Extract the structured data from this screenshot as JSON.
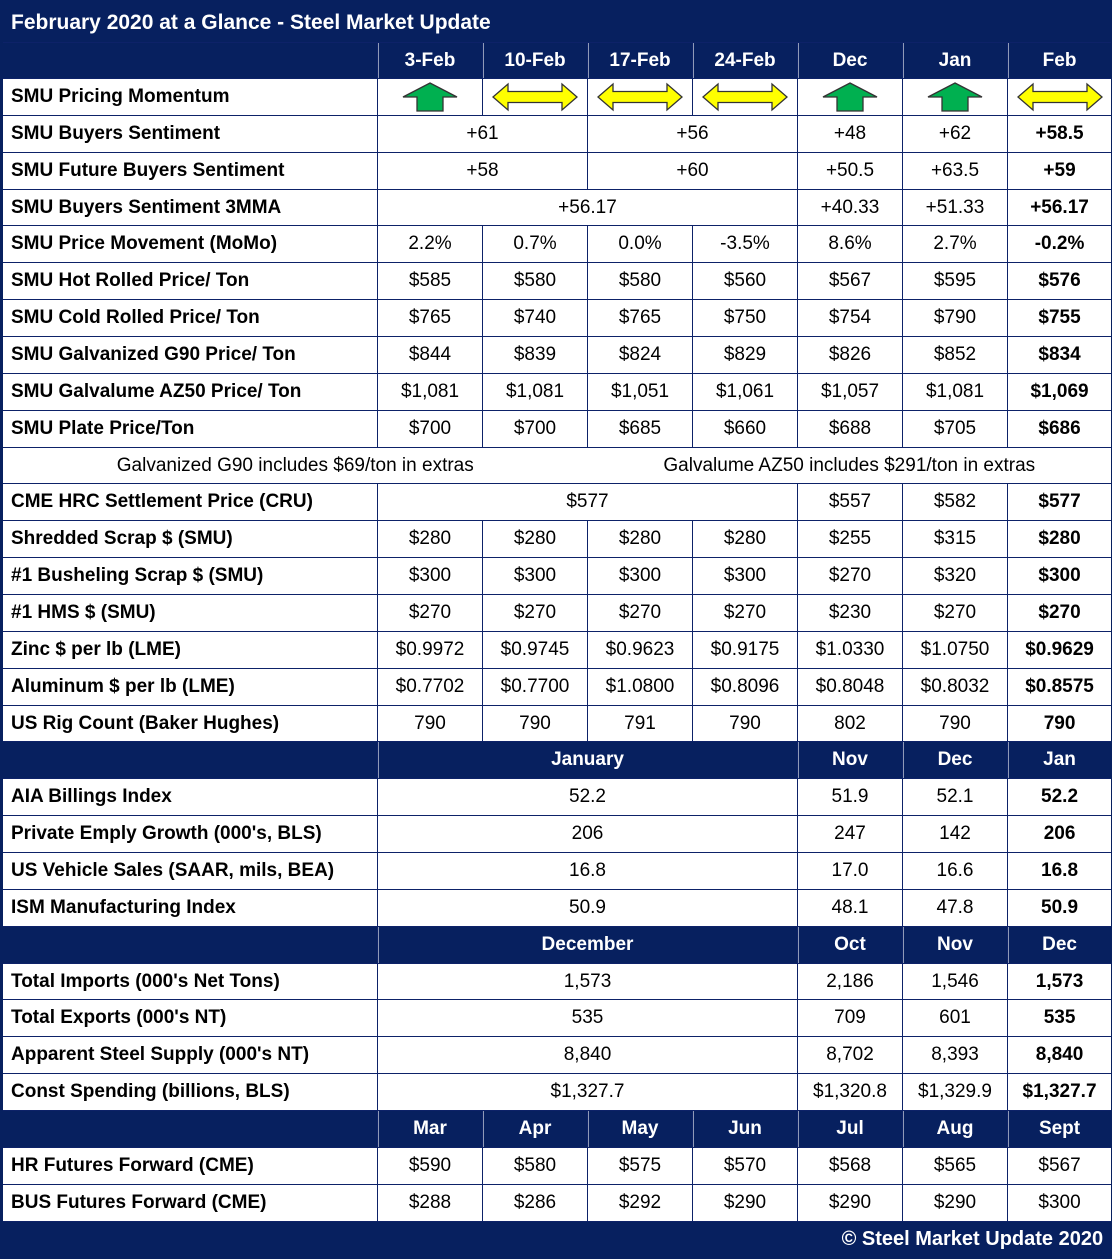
{
  "title": "February 2020 at a Glance - Steel Market Update",
  "footer": "© Steel Market Update 2020",
  "colors": {
    "navy": "#07205f",
    "green": "#00b050",
    "yellow": "#ffff00",
    "arrow_outline": "#333333"
  },
  "chart_data": {
    "type": "table",
    "title": "February 2020 at a Glance - Steel Market Update",
    "columns": [
      "3-Feb",
      "10-Feb",
      "17-Feb",
      "24-Feb",
      "Dec",
      "Jan",
      "Feb"
    ],
    "rows": [
      {
        "type": "arrows",
        "label": "SMU Pricing Momentum",
        "arrows": [
          "up",
          "leftright",
          "leftright",
          "leftright",
          "up",
          "up",
          "leftright"
        ]
      },
      {
        "type": "data",
        "label": "SMU Buyers Sentiment",
        "cells": [
          {
            "t": "+61",
            "span": 2
          },
          {
            "t": "+56",
            "span": 2
          },
          {
            "t": "+48"
          },
          {
            "t": "+62"
          },
          {
            "t": "+58.5",
            "b": 1
          }
        ]
      },
      {
        "type": "data",
        "label": "SMU Future Buyers Sentiment",
        "cells": [
          {
            "t": "+58",
            "span": 2
          },
          {
            "t": "+60",
            "span": 2
          },
          {
            "t": "+50.5"
          },
          {
            "t": "+63.5"
          },
          {
            "t": "+59",
            "b": 1
          }
        ]
      },
      {
        "type": "data",
        "label": "SMU Buyers Sentiment 3MMA",
        "cells": [
          {
            "t": "+56.17",
            "span": 4
          },
          {
            "t": "+40.33"
          },
          {
            "t": "+51.33"
          },
          {
            "t": "+56.17",
            "b": 1
          }
        ]
      },
      {
        "type": "data",
        "label": "SMU Price Movement (MoMo)",
        "cells": [
          {
            "t": "2.2%"
          },
          {
            "t": "0.7%"
          },
          {
            "t": "0.0%"
          },
          {
            "t": "-3.5%"
          },
          {
            "t": "8.6%"
          },
          {
            "t": "2.7%"
          },
          {
            "t": "-0.2%",
            "b": 1
          }
        ]
      },
      {
        "type": "data",
        "label": "SMU Hot Rolled Price/ Ton",
        "cells": [
          {
            "t": "$585"
          },
          {
            "t": "$580"
          },
          {
            "t": "$580"
          },
          {
            "t": "$560"
          },
          {
            "t": "$567"
          },
          {
            "t": "$595"
          },
          {
            "t": "$576",
            "b": 1
          }
        ]
      },
      {
        "type": "data",
        "label": "SMU Cold Rolled Price/ Ton",
        "cells": [
          {
            "t": "$765"
          },
          {
            "t": "$740"
          },
          {
            "t": "$765"
          },
          {
            "t": "$750"
          },
          {
            "t": "$754"
          },
          {
            "t": "$790"
          },
          {
            "t": "$755",
            "b": 1
          }
        ]
      },
      {
        "type": "data",
        "label": "SMU Galvanized G90 Price/ Ton",
        "cells": [
          {
            "t": "$844"
          },
          {
            "t": "$839"
          },
          {
            "t": "$824"
          },
          {
            "t": "$829"
          },
          {
            "t": "$826"
          },
          {
            "t": "$852"
          },
          {
            "t": "$834",
            "b": 1
          }
        ]
      },
      {
        "type": "data",
        "label": "SMU Galvalume AZ50 Price/ Ton",
        "cells": [
          {
            "t": "$1,081"
          },
          {
            "t": "$1,081"
          },
          {
            "t": "$1,051"
          },
          {
            "t": "$1,061"
          },
          {
            "t": "$1,057"
          },
          {
            "t": "$1,081"
          },
          {
            "t": "$1,069",
            "b": 1
          }
        ]
      },
      {
        "type": "data",
        "label": "SMU Plate Price/Ton",
        "cells": [
          {
            "t": "$700"
          },
          {
            "t": "$700"
          },
          {
            "t": "$685"
          },
          {
            "t": "$660"
          },
          {
            "t": "$688"
          },
          {
            "t": "$705"
          },
          {
            "t": "$686",
            "b": 1
          }
        ]
      },
      {
        "type": "note",
        "cells": [
          {
            "t": "Galvanized G90 includes $69/ton in extras",
            "span": 3
          },
          {
            "t": "Galvalume AZ50 includes $291/ton in extras",
            "span": 5
          }
        ]
      },
      {
        "type": "data",
        "label": "CME HRC Settlement Price (CRU)",
        "cells": [
          {
            "t": "$577",
            "span": 4
          },
          {
            "t": "$557"
          },
          {
            "t": "$582"
          },
          {
            "t": "$577",
            "b": 1
          }
        ]
      },
      {
        "type": "data",
        "label": "Shredded Scrap $ (SMU)",
        "cells": [
          {
            "t": "$280"
          },
          {
            "t": "$280"
          },
          {
            "t": "$280"
          },
          {
            "t": "$280"
          },
          {
            "t": "$255"
          },
          {
            "t": "$315"
          },
          {
            "t": "$280",
            "b": 1
          }
        ]
      },
      {
        "type": "data",
        "label": "#1 Busheling Scrap $ (SMU)",
        "cells": [
          {
            "t": "$300"
          },
          {
            "t": "$300"
          },
          {
            "t": "$300"
          },
          {
            "t": "$300"
          },
          {
            "t": "$270"
          },
          {
            "t": "$320"
          },
          {
            "t": "$300",
            "b": 1
          }
        ]
      },
      {
        "type": "data",
        "label": "#1 HMS $ (SMU)",
        "cells": [
          {
            "t": "$270"
          },
          {
            "t": "$270"
          },
          {
            "t": "$270"
          },
          {
            "t": "$270"
          },
          {
            "t": "$230"
          },
          {
            "t": "$270"
          },
          {
            "t": "$270",
            "b": 1
          }
        ]
      },
      {
        "type": "data",
        "label": "Zinc $ per lb (LME)",
        "cells": [
          {
            "t": "$0.9972"
          },
          {
            "t": "$0.9745"
          },
          {
            "t": "$0.9623"
          },
          {
            "t": "$0.9175"
          },
          {
            "t": "$1.0330"
          },
          {
            "t": "$1.0750"
          },
          {
            "t": "$0.9629",
            "b": 1
          }
        ]
      },
      {
        "type": "data",
        "label": "Aluminum $ per lb (LME)",
        "cells": [
          {
            "t": "$0.7702"
          },
          {
            "t": "$0.7700"
          },
          {
            "t": "$1.0800"
          },
          {
            "t": "$0.8096"
          },
          {
            "t": "$0.8048"
          },
          {
            "t": "$0.8032"
          },
          {
            "t": "$0.8575",
            "b": 1
          }
        ]
      },
      {
        "type": "data",
        "label": "US Rig Count (Baker Hughes)",
        "cells": [
          {
            "t": "790"
          },
          {
            "t": "790"
          },
          {
            "t": "791"
          },
          {
            "t": "790"
          },
          {
            "t": "802"
          },
          {
            "t": "790"
          },
          {
            "t": "790",
            "b": 1
          }
        ]
      },
      {
        "type": "section",
        "label": "",
        "cells": [
          {
            "t": "January",
            "span": 4
          },
          {
            "t": "Nov"
          },
          {
            "t": "Dec"
          },
          {
            "t": "Jan"
          }
        ]
      },
      {
        "type": "data",
        "label": "AIA Billings Index",
        "cells": [
          {
            "t": "52.2",
            "span": 4
          },
          {
            "t": "51.9"
          },
          {
            "t": "52.1"
          },
          {
            "t": "52.2",
            "b": 1
          }
        ]
      },
      {
        "type": "data",
        "label": "Private Emply Growth (000's, BLS)",
        "cells": [
          {
            "t": "206",
            "span": 4
          },
          {
            "t": "247"
          },
          {
            "t": "142"
          },
          {
            "t": "206",
            "b": 1
          }
        ]
      },
      {
        "type": "data",
        "label": "US Vehicle Sales (SAAR, mils, BEA)",
        "cells": [
          {
            "t": "16.8",
            "span": 4
          },
          {
            "t": "17.0"
          },
          {
            "t": "16.6"
          },
          {
            "t": "16.8",
            "b": 1
          }
        ]
      },
      {
        "type": "data",
        "label": "ISM Manufacturing Index",
        "cells": [
          {
            "t": "50.9",
            "span": 4
          },
          {
            "t": "48.1"
          },
          {
            "t": "47.8"
          },
          {
            "t": "50.9",
            "b": 1
          }
        ]
      },
      {
        "type": "section",
        "label": "",
        "cells": [
          {
            "t": "December",
            "span": 4
          },
          {
            "t": "Oct"
          },
          {
            "t": "Nov"
          },
          {
            "t": "Dec"
          }
        ]
      },
      {
        "type": "data",
        "label": "Total Imports (000's Net Tons)",
        "cells": [
          {
            "t": "1,573",
            "span": 4
          },
          {
            "t": "2,186"
          },
          {
            "t": "1,546"
          },
          {
            "t": "1,573",
            "b": 1
          }
        ]
      },
      {
        "type": "data",
        "label": "Total Exports (000's NT)",
        "cells": [
          {
            "t": "535",
            "span": 4
          },
          {
            "t": "709"
          },
          {
            "t": "601"
          },
          {
            "t": "535",
            "b": 1
          }
        ]
      },
      {
        "type": "data",
        "label": "Apparent Steel Supply (000's NT)",
        "cells": [
          {
            "t": "8,840",
            "span": 4
          },
          {
            "t": "8,702"
          },
          {
            "t": "8,393"
          },
          {
            "t": "8,840",
            "b": 1
          }
        ]
      },
      {
        "type": "data",
        "label": "Const Spending (billions, BLS)",
        "cells": [
          {
            "t": "$1,327.7",
            "span": 4
          },
          {
            "t": "$1,320.8"
          },
          {
            "t": "$1,329.9"
          },
          {
            "t": "$1,327.7",
            "b": 1
          }
        ]
      },
      {
        "type": "section",
        "label": "",
        "cells": [
          {
            "t": "Mar"
          },
          {
            "t": "Apr"
          },
          {
            "t": "May"
          },
          {
            "t": "Jun"
          },
          {
            "t": "Jul"
          },
          {
            "t": "Aug"
          },
          {
            "t": "Sept"
          }
        ]
      },
      {
        "type": "data",
        "label": "HR Futures Forward (CME)",
        "cells": [
          {
            "t": "$590"
          },
          {
            "t": "$580"
          },
          {
            "t": "$575"
          },
          {
            "t": "$570"
          },
          {
            "t": "$568"
          },
          {
            "t": "$565"
          },
          {
            "t": "$567"
          }
        ]
      },
      {
        "type": "data",
        "label": "BUS Futures Forward (CME)",
        "cells": [
          {
            "t": "$288"
          },
          {
            "t": "$286"
          },
          {
            "t": "$292"
          },
          {
            "t": "$290"
          },
          {
            "t": "$290"
          },
          {
            "t": "$290"
          },
          {
            "t": "$300"
          }
        ]
      }
    ]
  }
}
